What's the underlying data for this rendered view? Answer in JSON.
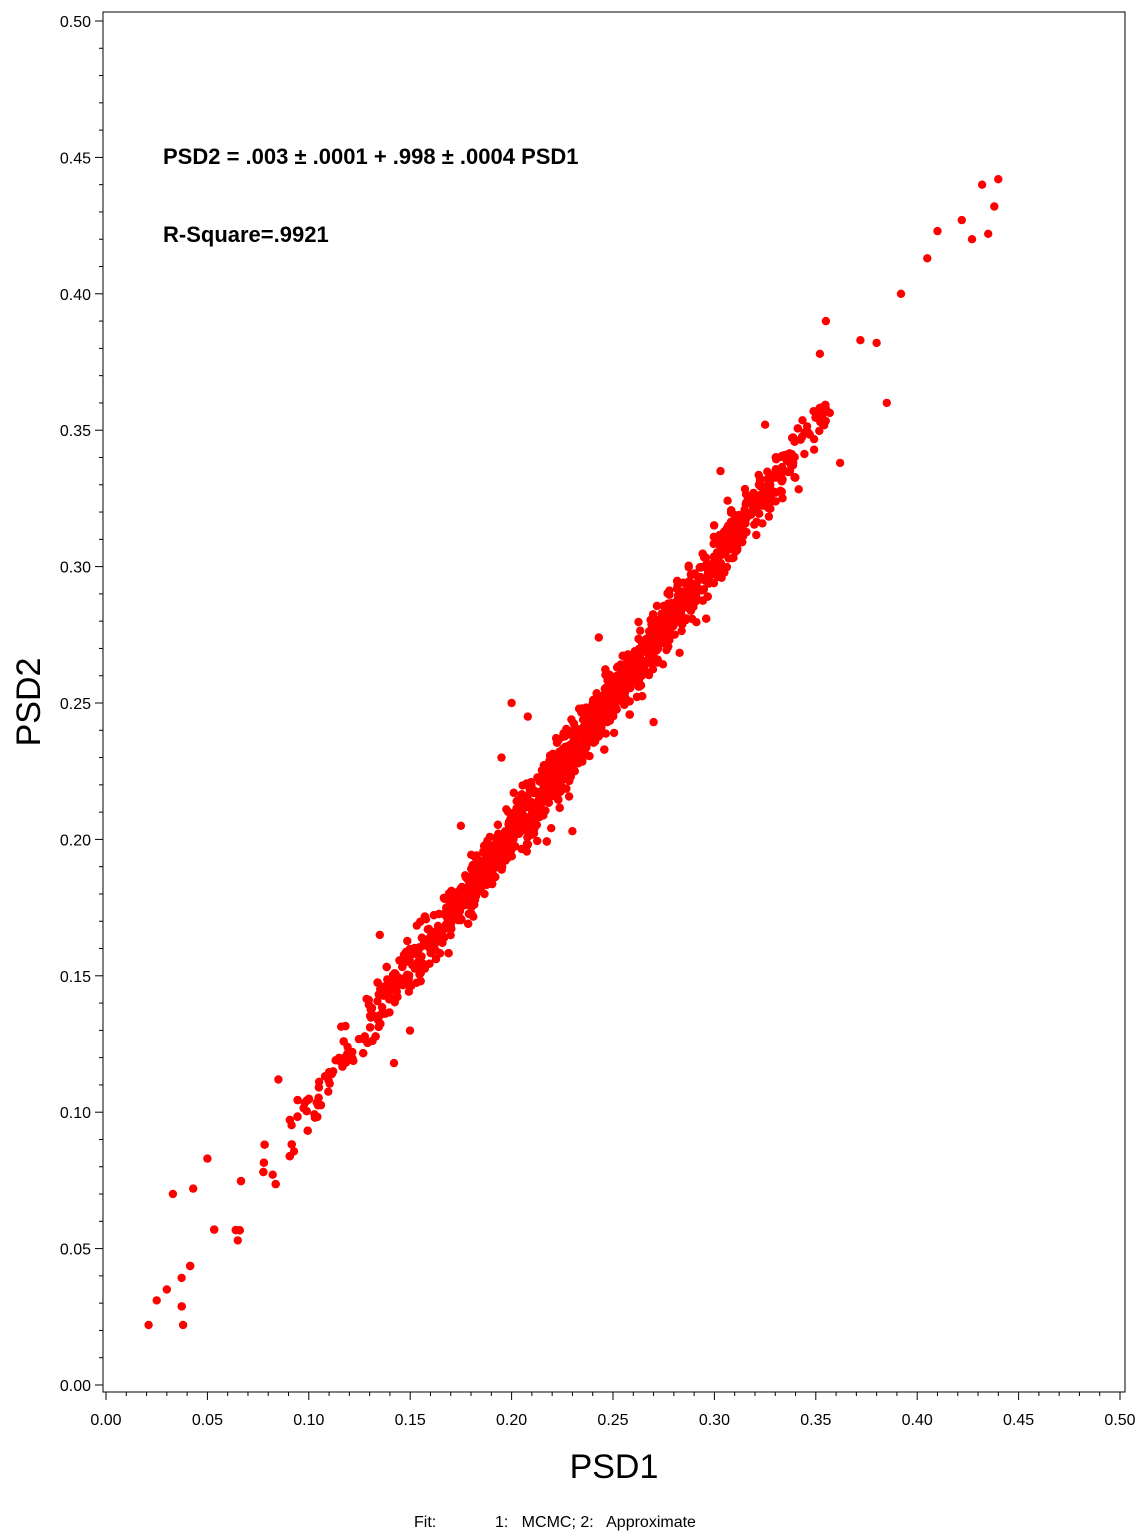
{
  "chart_data": {
    "type": "scatter",
    "xlabel": "PSD1",
    "ylabel": "PSD2",
    "xlim": [
      0.0,
      0.5
    ],
    "ylim": [
      0.0,
      0.5
    ],
    "x_ticks": [
      "0.00",
      "0.05",
      "0.10",
      "0.15",
      "0.20",
      "0.25",
      "0.30",
      "0.35",
      "0.40",
      "0.45",
      "0.50"
    ],
    "y_ticks": [
      "0.00",
      "0.05",
      "0.10",
      "0.15",
      "0.20",
      "0.25",
      "0.30",
      "0.35",
      "0.40",
      "0.45",
      "0.50"
    ],
    "annotations": [
      "PSD2 = .003 ± .0001 + .998 ± .0004 PSD1",
      "R-Square=.9921"
    ],
    "marker_color": "#ff0000",
    "grid": false,
    "fit": {
      "intercept": 0.003,
      "slope": 0.998,
      "r_square": 0.9921
    },
    "points_sample": [
      [
        0.021,
        0.022
      ],
      [
        0.025,
        0.031
      ],
      [
        0.03,
        0.035
      ],
      [
        0.033,
        0.07
      ],
      [
        0.038,
        0.022
      ],
      [
        0.043,
        0.072
      ],
      [
        0.05,
        0.083
      ],
      [
        0.065,
        0.053
      ],
      [
        0.085,
        0.112
      ],
      [
        0.103,
        0.098
      ],
      [
        0.135,
        0.165
      ],
      [
        0.142,
        0.118
      ],
      [
        0.175,
        0.205
      ],
      [
        0.165,
        0.163
      ],
      [
        0.195,
        0.23
      ],
      [
        0.2,
        0.25
      ],
      [
        0.208,
        0.245
      ],
      [
        0.23,
        0.203
      ],
      [
        0.243,
        0.274
      ],
      [
        0.263,
        0.256
      ],
      [
        0.27,
        0.243
      ],
      [
        0.303,
        0.335
      ],
      [
        0.315,
        0.32
      ],
      [
        0.325,
        0.352
      ],
      [
        0.352,
        0.378
      ],
      [
        0.355,
        0.39
      ],
      [
        0.362,
        0.338
      ],
      [
        0.385,
        0.36
      ],
      [
        0.392,
        0.4
      ],
      [
        0.405,
        0.413
      ],
      [
        0.41,
        0.423
      ],
      [
        0.422,
        0.427
      ],
      [
        0.427,
        0.42
      ],
      [
        0.432,
        0.44
      ],
      [
        0.438,
        0.432
      ],
      [
        0.44,
        0.442
      ],
      [
        0.435,
        0.422
      ],
      [
        0.38,
        0.382
      ],
      [
        0.372,
        0.383
      ],
      [
        0.252,
        0.263
      ]
    ]
  },
  "footer": {
    "label": "Fit:",
    "text": "1:   MCMC; 2:   Approximate"
  }
}
